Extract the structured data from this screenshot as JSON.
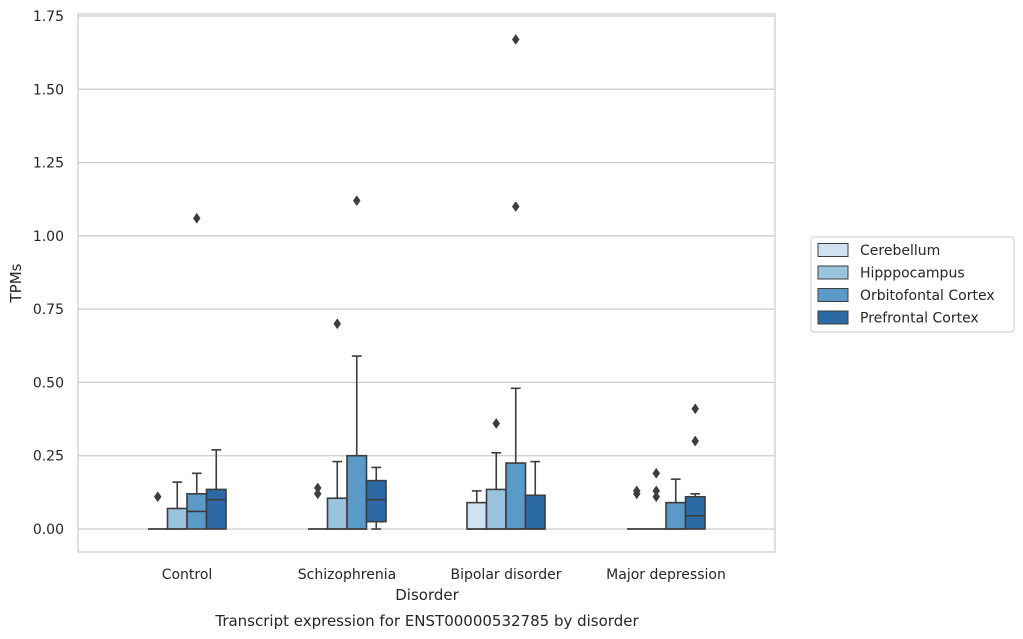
{
  "chart_data": {
    "type": "boxplot",
    "title": "",
    "xlabel": "Disorder",
    "ylabel": "TPMs",
    "caption": "Transcript expression for ENST00000532785 by disorder",
    "categories": [
      "Control",
      "Schizophrenia",
      "Bipolar disorder",
      "Major depression"
    ],
    "ylim": [
      -0.08,
      1.76
    ],
    "yticks": [
      0.0,
      0.25,
      0.5,
      0.75,
      1.0,
      1.25,
      1.5,
      1.75
    ],
    "ytick_labels": [
      "0.00",
      "0.25",
      "0.50",
      "0.75",
      "1.00",
      "1.25",
      "1.50",
      "1.75"
    ],
    "grid": "horizontal",
    "legend_position": "right",
    "series": [
      {
        "name": "Cerebellum",
        "color": "#d0e1f2",
        "boxes": [
          {
            "q1": 0.0,
            "median": 0.0,
            "q3": 0.0,
            "whisker_low": 0.0,
            "whisker_high": 0.0,
            "outliers": [
              0.11
            ]
          },
          {
            "q1": 0.0,
            "median": 0.0,
            "q3": 0.0,
            "whisker_low": 0.0,
            "whisker_high": 0.0,
            "outliers": [
              0.12,
              0.14
            ]
          },
          {
            "q1": 0.0,
            "median": 0.0,
            "q3": 0.09,
            "whisker_low": 0.0,
            "whisker_high": 0.13,
            "outliers": []
          },
          {
            "q1": 0.0,
            "median": 0.0,
            "q3": 0.0,
            "whisker_low": 0.0,
            "whisker_high": 0.0,
            "outliers": [
              0.12,
              0.13
            ]
          }
        ]
      },
      {
        "name": "Hipppocampus",
        "color": "#9ac3de",
        "boxes": [
          {
            "q1": 0.0,
            "median": 0.0,
            "q3": 0.07,
            "whisker_low": 0.0,
            "whisker_high": 0.16,
            "outliers": []
          },
          {
            "q1": 0.0,
            "median": 0.0,
            "q3": 0.105,
            "whisker_low": 0.0,
            "whisker_high": 0.23,
            "outliers": [
              0.7
            ]
          },
          {
            "q1": 0.0,
            "median": 0.0,
            "q3": 0.135,
            "whisker_low": 0.0,
            "whisker_high": 0.26,
            "outliers": [
              0.36
            ]
          },
          {
            "q1": 0.0,
            "median": 0.0,
            "q3": 0.0,
            "whisker_low": 0.0,
            "whisker_high": 0.0,
            "outliers": [
              0.11,
              0.13,
              0.19
            ]
          }
        ]
      },
      {
        "name": "Orbitofontal Cortex",
        "color": "#5a9ac8",
        "boxes": [
          {
            "q1": 0.0,
            "median": 0.06,
            "q3": 0.12,
            "whisker_low": 0.0,
            "whisker_high": 0.19,
            "outliers": [
              1.06
            ]
          },
          {
            "q1": 0.0,
            "median": 0.0,
            "q3": 0.25,
            "whisker_low": 0.0,
            "whisker_high": 0.59,
            "outliers": [
              1.12
            ]
          },
          {
            "q1": 0.0,
            "median": 0.0,
            "q3": 0.225,
            "whisker_low": 0.0,
            "whisker_high": 0.48,
            "outliers": [
              1.1,
              1.67
            ]
          },
          {
            "q1": 0.0,
            "median": 0.0,
            "q3": 0.09,
            "whisker_low": 0.0,
            "whisker_high": 0.17,
            "outliers": []
          }
        ]
      },
      {
        "name": "Prefrontal Cortex",
        "color": "#2c6aa5",
        "boxes": [
          {
            "q1": 0.0,
            "median": 0.1,
            "q3": 0.135,
            "whisker_low": 0.0,
            "whisker_high": 0.27,
            "outliers": []
          },
          {
            "q1": 0.025,
            "median": 0.1,
            "q3": 0.165,
            "whisker_low": 0.0,
            "whisker_high": 0.21,
            "outliers": []
          },
          {
            "q1": 0.0,
            "median": 0.0,
            "q3": 0.115,
            "whisker_low": 0.0,
            "whisker_high": 0.23,
            "outliers": []
          },
          {
            "q1": 0.0,
            "median": 0.045,
            "q3": 0.11,
            "whisker_low": 0.0,
            "whisker_high": 0.12,
            "outliers": [
              0.3,
              0.41
            ]
          }
        ]
      }
    ]
  }
}
